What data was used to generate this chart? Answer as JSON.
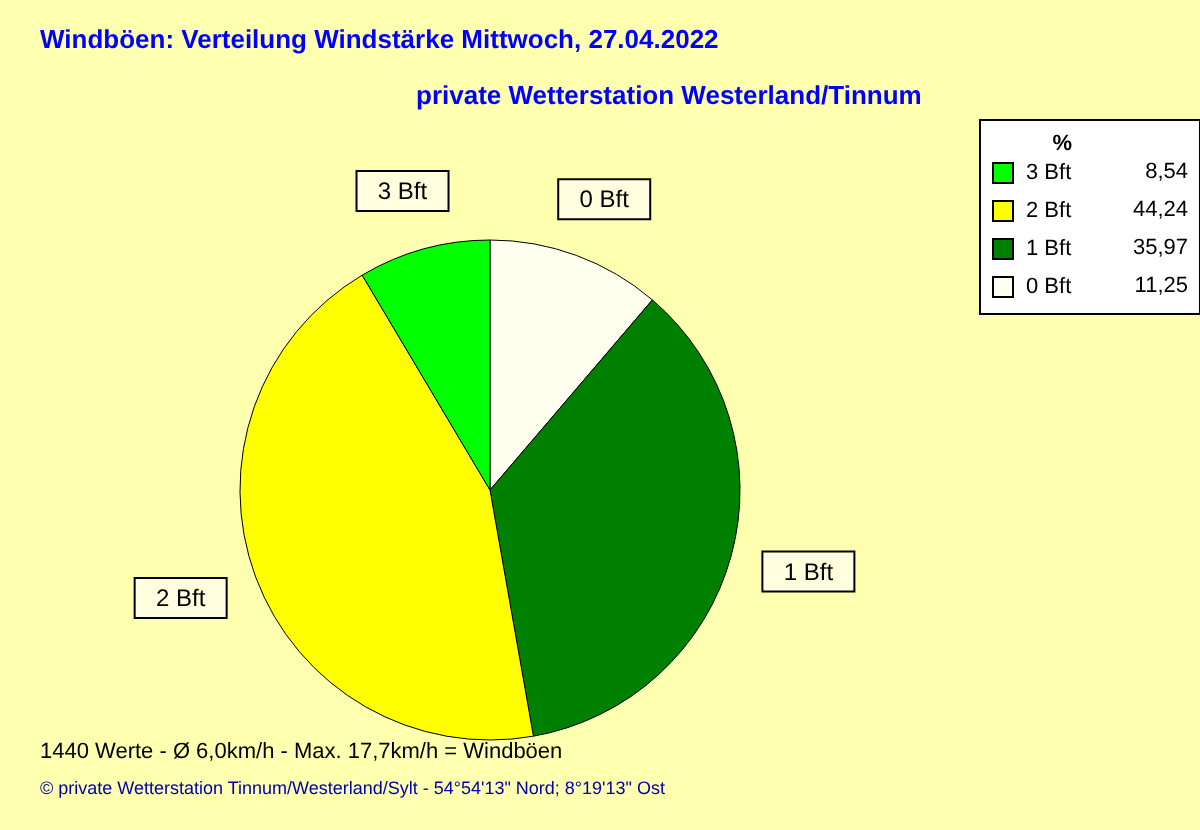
{
  "chart_data": {
    "type": "pie",
    "title": "Windböen: Verteilung Windstärke  Mittwoch, 27.04.2022",
    "subtitle": "private Wetterstation Westerland/Tinnum",
    "categories": [
      "0 Bft",
      "1 Bft",
      "2 Bft",
      "3 Bft"
    ],
    "values": [
      11.25,
      35.97,
      44.24,
      8.54
    ],
    "value_labels": [
      "11,25",
      "35,97",
      "44,24",
      "8,54"
    ],
    "colors": [
      "#fffff0",
      "#008000",
      "#ffff00",
      "#00ff00"
    ],
    "legend_title": "%",
    "legend": "top right",
    "annotations": [
      "1440 Werte   -   Ø 6,0km/h  -  Max. 17,7km/h = Windböen",
      "© private Wetterstation Tinnum/Westerland/Sylt  -  54°54'13\" Nord; 8°19'13\" Ost"
    ]
  }
}
